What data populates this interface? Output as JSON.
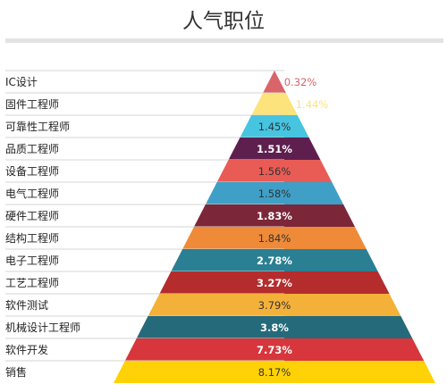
{
  "chart_data": {
    "type": "pyramid",
    "title": "人气职位",
    "categories": [
      "IC设计",
      "固件工程师",
      "可靠性工程师",
      "品质工程师",
      "设备工程师",
      "电气工程师",
      "硬件工程师",
      "结构工程师",
      "电子工程师",
      "工艺工程师",
      "软件测试",
      "机械设计工程师",
      "软件开发",
      "销售"
    ],
    "values": [
      0.32,
      1.44,
      1.45,
      1.51,
      1.56,
      1.58,
      1.83,
      1.84,
      2.78,
      3.27,
      3.79,
      3.8,
      7.73,
      8.17
    ],
    "value_labels": [
      "0.32%",
      "1.44%",
      "1.45%",
      "1.51%",
      "1.56%",
      "1.58%",
      "1.83%",
      "1.84%",
      "2.78%",
      "3.27%",
      "3.79%",
      "3.8%",
      "7.73%",
      "8.17%"
    ],
    "colors": [
      "#d9646a",
      "#fde37c",
      "#46c4e0",
      "#5e1f4f",
      "#e85c55",
      "#3f9fc7",
      "#7c2639",
      "#ee8a38",
      "#2a7f93",
      "#b42c2c",
      "#f4b13a",
      "#256a7a",
      "#d6363c",
      "#fed206"
    ],
    "label_colors": [
      "#d9646a",
      "#fde37c",
      "#333333",
      "#ffffff",
      "#333333",
      "#333333",
      "#ffffff",
      "#333333",
      "#ffffff",
      "#ffffff",
      "#333333",
      "#ffffff",
      "#ffffff",
      "#333333"
    ],
    "label_bold": [
      false,
      false,
      false,
      true,
      false,
      false,
      true,
      false,
      true,
      true,
      false,
      true,
      true,
      false
    ],
    "unit": "%"
  }
}
